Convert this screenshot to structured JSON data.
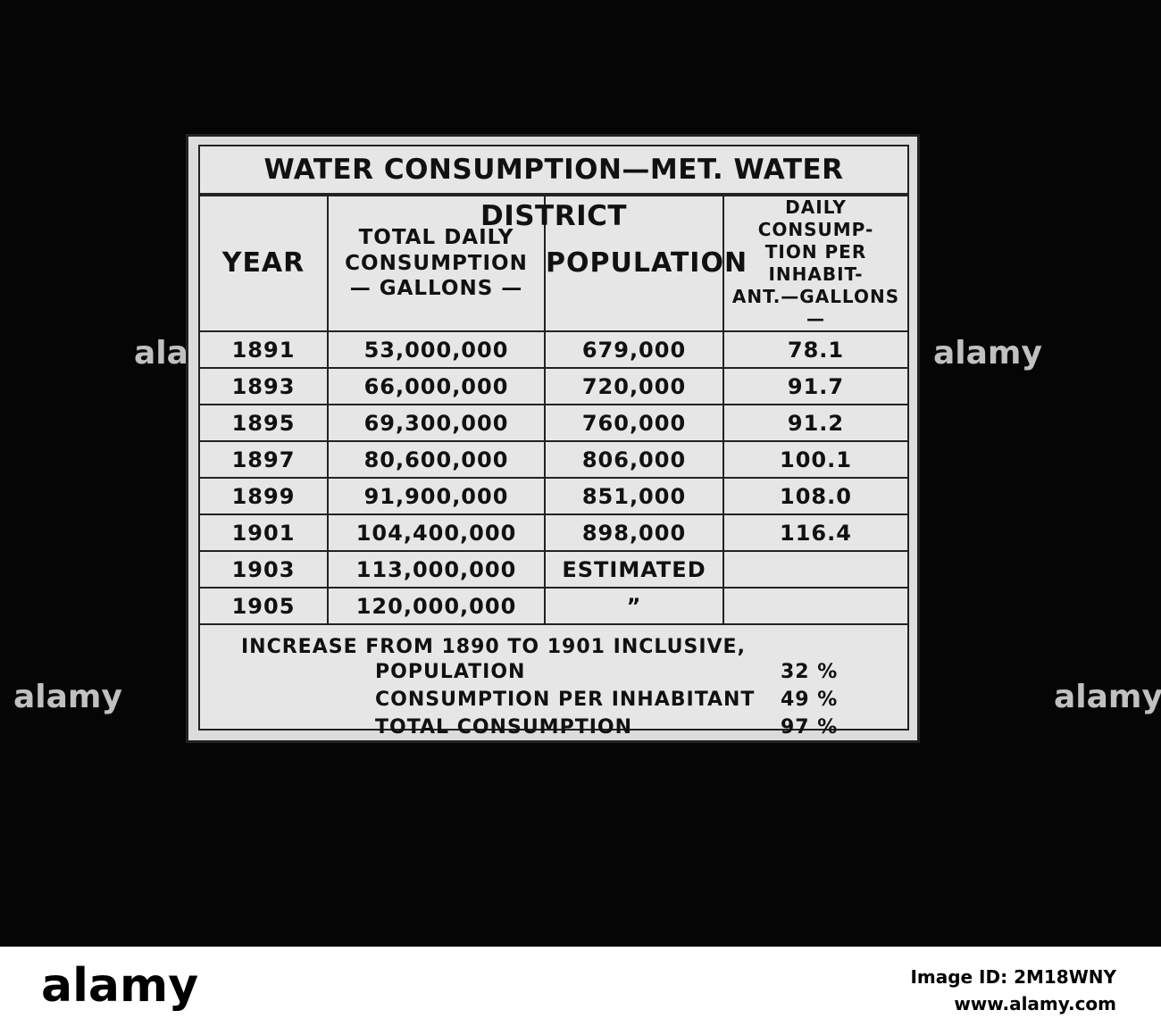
{
  "slide": {
    "title": "WATER CONSUMPTION—MET. WATER DISTRICT",
    "headers": [
      [
        "YEAR"
      ],
      [
        "TOTAL DAILY",
        "CONSUMPTION",
        "— GALLONS —"
      ],
      [
        "POPULATION"
      ],
      [
        "DAILY CONSUMP-",
        "TION PER INHABIT-",
        "ANT.—GALLONS—"
      ]
    ],
    "rows": [
      [
        "1891",
        "53,000,000",
        "679,000",
        "78.1"
      ],
      [
        "1893",
        "66,000,000",
        "720,000",
        "91.7"
      ],
      [
        "1895",
        "69,300,000",
        "760,000",
        "91.2"
      ],
      [
        "1897",
        "80,600,000",
        "806,000",
        "100.1"
      ],
      [
        "1899",
        "91,900,000",
        "851,000",
        "108.0"
      ],
      [
        "1901",
        "104,400,000",
        "898,000",
        "116.4"
      ],
      [
        "1903",
        "113,000,000",
        "ESTIMATED"
      ],
      [
        "1905",
        "120,000,000",
        "”"
      ]
    ],
    "summary": {
      "intro": "INCREASE FROM 1890 TO 1901 INCLUSIVE,",
      "items": [
        {
          "label": "POPULATION",
          "value": "32 %"
        },
        {
          "label": "CONSUMPTION PER INHABITANT",
          "value": "49 %"
        },
        {
          "label": "TOTAL CONSUMPTION",
          "value": "97 %"
        }
      ]
    }
  },
  "footer": {
    "brand": "alamy",
    "image_id": "Image ID: 2M18WNY",
    "url": "www.alamy.com"
  }
}
